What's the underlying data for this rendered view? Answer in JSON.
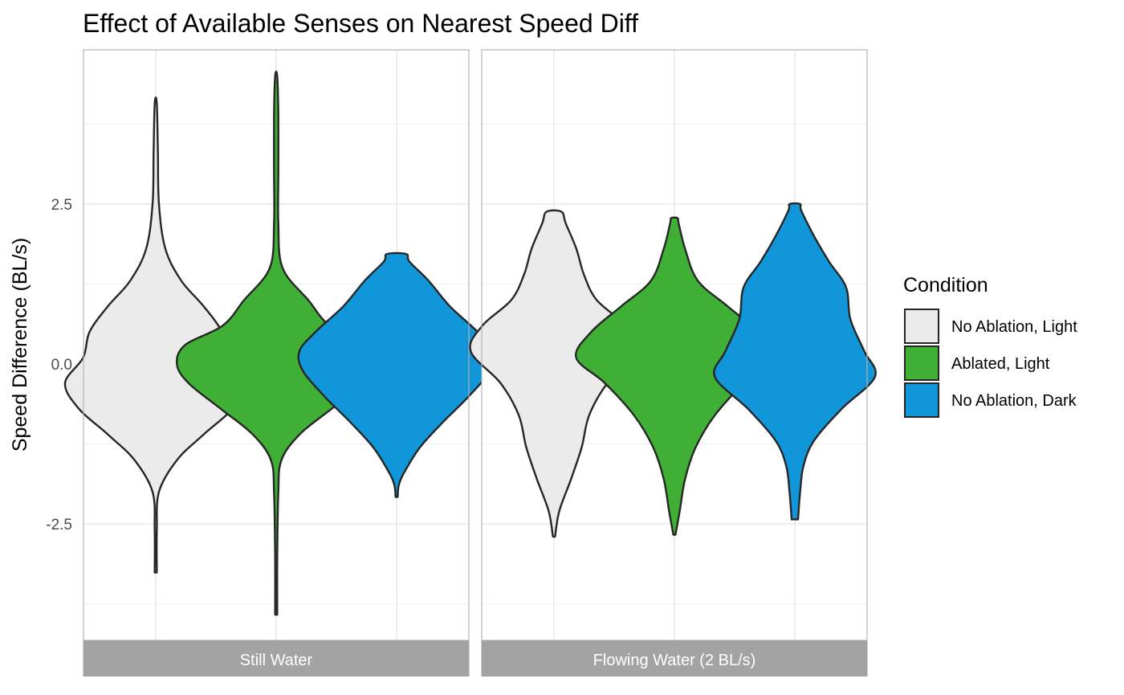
{
  "chart_data": {
    "type": "violin",
    "title": "Effect of Available Senses on Nearest Speed Diff",
    "xlabel": "",
    "ylabel": "Speed Difference (BL/s)",
    "ylim": [
      -4.4,
      4.8
    ],
    "yticks": [
      -2.5,
      0.0,
      2.5
    ],
    "yticklabels": [
      "-2.5",
      "0.0",
      "2.5"
    ],
    "grid": true,
    "legend": {
      "title": "Condition",
      "position": "right",
      "entries": [
        {
          "label": "No Ablation, Light",
          "color": "#ebebeb"
        },
        {
          "label": "Ablated, Light",
          "color": "#3fb035"
        },
        {
          "label": "No Ablation, Dark",
          "color": "#1196da"
        }
      ]
    },
    "facets": [
      {
        "label": "Still Water",
        "violins": [
          {
            "condition": "No Ablation, Light",
            "min": -3.26,
            "max": 4.07,
            "profile": [
              [
                -3.26,
                0.01
              ],
              [
                -2.6,
                0.01
              ],
              [
                -2.0,
                0.03
              ],
              [
                -1.5,
                0.2
              ],
              [
                -1.1,
                0.45
              ],
              [
                -0.7,
                0.72
              ],
              [
                -0.3,
                0.85
              ],
              [
                0.1,
                0.68
              ],
              [
                0.5,
                0.62
              ],
              [
                0.9,
                0.45
              ],
              [
                1.3,
                0.24
              ],
              [
                1.8,
                0.09
              ],
              [
                2.5,
                0.03
              ],
              [
                3.3,
                0.02
              ],
              [
                4.07,
                0.01
              ]
            ]
          },
          {
            "condition": "Ablated, Light",
            "min": -3.92,
            "max": 4.5,
            "profile": [
              [
                -3.92,
                0.01
              ],
              [
                -3.0,
                0.01
              ],
              [
                -2.0,
                0.02
              ],
              [
                -1.5,
                0.05
              ],
              [
                -1.1,
                0.22
              ],
              [
                -0.7,
                0.52
              ],
              [
                -0.3,
                0.82
              ],
              [
                0.0,
                0.93
              ],
              [
                0.3,
                0.85
              ],
              [
                0.6,
                0.5
              ],
              [
                1.0,
                0.3
              ],
              [
                1.5,
                0.06
              ],
              [
                2.2,
                0.02
              ],
              [
                3.0,
                0.02
              ],
              [
                3.9,
                0.02
              ],
              [
                4.5,
                0.01
              ]
            ]
          },
          {
            "condition": "No Ablation, Dark",
            "min": -2.08,
            "max": 1.72,
            "profile": [
              [
                -2.08,
                0.01
              ],
              [
                -1.9,
                0.02
              ],
              [
                -1.7,
                0.07
              ],
              [
                -1.3,
                0.22
              ],
              [
                -0.9,
                0.44
              ],
              [
                -0.5,
                0.68
              ],
              [
                -0.1,
                0.88
              ],
              [
                0.2,
                0.91
              ],
              [
                0.5,
                0.76
              ],
              [
                0.9,
                0.5
              ],
              [
                1.3,
                0.3
              ],
              [
                1.6,
                0.12
              ],
              [
                1.72,
                0.09
              ]
            ]
          }
        ]
      },
      {
        "label": "Flowing Water (2 BL/s)",
        "violins": [
          {
            "condition": "No Ablation, Light",
            "min": -2.7,
            "max": 2.38,
            "profile": [
              [
                -2.7,
                0.01
              ],
              [
                -2.3,
                0.05
              ],
              [
                -1.8,
                0.16
              ],
              [
                -1.3,
                0.26
              ],
              [
                -0.8,
                0.33
              ],
              [
                -0.3,
                0.5
              ],
              [
                0.2,
                0.78
              ],
              [
                0.6,
                0.67
              ],
              [
                1.0,
                0.4
              ],
              [
                1.4,
                0.28
              ],
              [
                1.8,
                0.21
              ],
              [
                2.2,
                0.11
              ],
              [
                2.38,
                0.07
              ]
            ]
          },
          {
            "condition": "Ablated, Light",
            "min": -2.67,
            "max": 2.28,
            "profile": [
              [
                -2.67,
                0.01
              ],
              [
                -2.3,
                0.05
              ],
              [
                -1.8,
                0.1
              ],
              [
                -1.3,
                0.2
              ],
              [
                -0.8,
                0.38
              ],
              [
                -0.3,
                0.65
              ],
              [
                0.1,
                0.92
              ],
              [
                0.5,
                0.78
              ],
              [
                0.9,
                0.5
              ],
              [
                1.3,
                0.22
              ],
              [
                1.8,
                0.1
              ],
              [
                2.2,
                0.04
              ],
              [
                2.28,
                0.03
              ]
            ]
          },
          {
            "condition": "No Ablation, Dark",
            "min": -2.43,
            "max": 2.5,
            "profile": [
              [
                -2.43,
                0.03
              ],
              [
                -2.0,
                0.05
              ],
              [
                -1.6,
                0.08
              ],
              [
                -1.2,
                0.18
              ],
              [
                -0.7,
                0.44
              ],
              [
                -0.2,
                0.75
              ],
              [
                0.2,
                0.65
              ],
              [
                0.7,
                0.52
              ],
              [
                1.2,
                0.48
              ],
              [
                1.6,
                0.32
              ],
              [
                2.0,
                0.18
              ],
              [
                2.4,
                0.06
              ],
              [
                2.5,
                0.05
              ]
            ]
          }
        ]
      }
    ]
  }
}
